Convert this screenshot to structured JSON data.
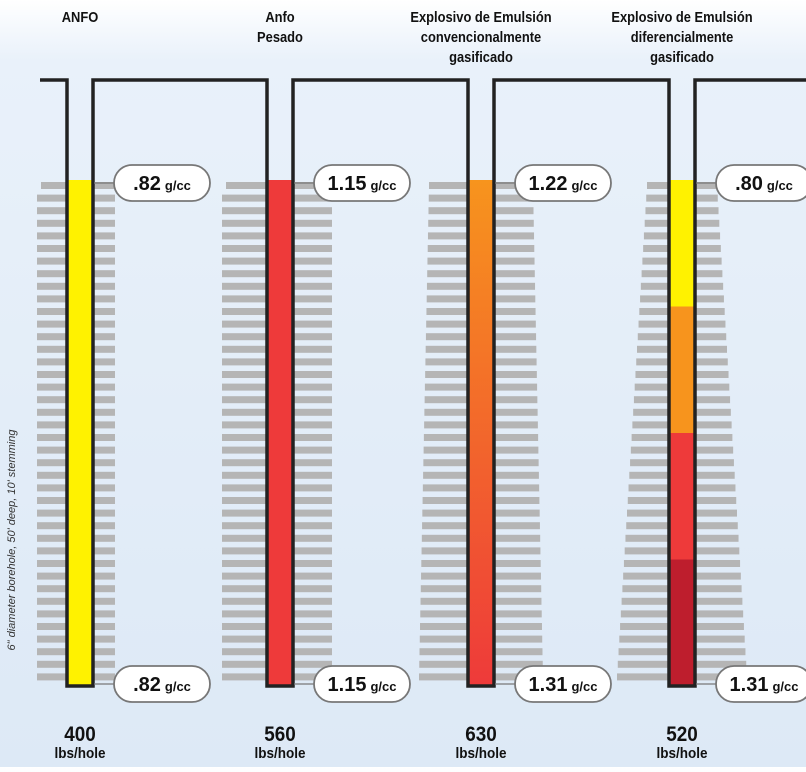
{
  "side_note": "6\" diameter borehole, 50' deep, 10' stemming",
  "unit_label": "g/cc",
  "columns": [
    {
      "title": [
        "ANFO"
      ],
      "top_density": ".82",
      "bottom_density": ".82",
      "weight": "400",
      "weight_unit": "lbs/hole",
      "fill_colors": [
        "#fff200"
      ]
    },
    {
      "title": [
        "Anfo",
        "Pesado"
      ],
      "top_density": "1.15",
      "bottom_density": "1.15",
      "weight": "560",
      "weight_unit": "lbs/hole",
      "fill_colors": [
        "#ee3a3a"
      ]
    },
    {
      "title": [
        "Explosivo de Emulsión",
        "convencionalmente",
        "gasificado"
      ],
      "top_density": "1.22",
      "bottom_density": "1.31",
      "weight": "630",
      "weight_unit": "lbs/hole",
      "fill_gradient": [
        "#f7941d",
        "#ee3a3a"
      ]
    },
    {
      "title": [
        "Explosivo de Emulsión",
        "diferencialmente",
        "gasificado"
      ],
      "top_density": ".80",
      "bottom_density": "1.31",
      "weight": "520",
      "weight_unit": "lbs/hole",
      "fill_colors": [
        "#fff200",
        "#f7941d",
        "#ee3a3a",
        "#be1e2d"
      ]
    }
  ],
  "colors": {
    "outline": "#222222",
    "stripe": "#b5b5b5",
    "bubble_fill": "#ffffff",
    "bubble_stroke": "#777777"
  }
}
